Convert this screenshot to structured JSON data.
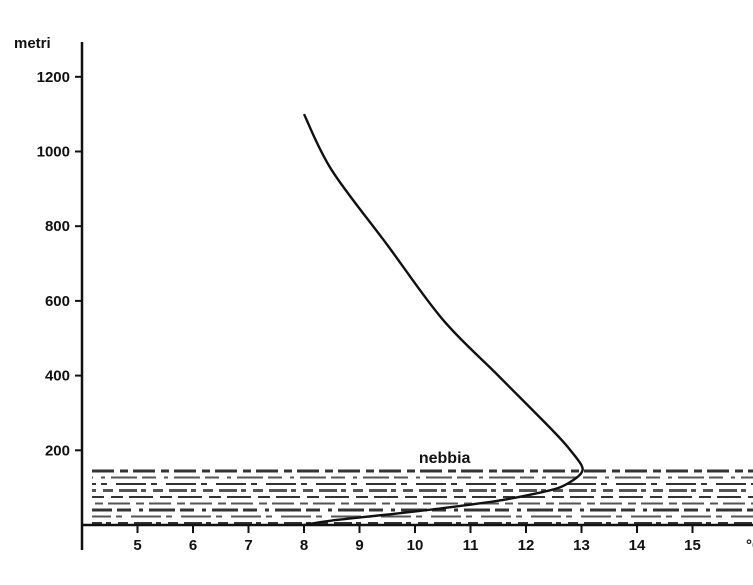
{
  "chart_data": {
    "type": "line",
    "ylabel": "metri",
    "xlabel": "°C",
    "xlim": [
      4,
      16
    ],
    "ylim": [
      0,
      1300
    ],
    "x_ticks": [
      "5",
      "6",
      "7",
      "8",
      "9",
      "10",
      "11",
      "12",
      "13",
      "14",
      "15"
    ],
    "y_ticks": [
      "200",
      "400",
      "600",
      "800",
      "1000",
      "1200"
    ],
    "y_tick_values": [
      200,
      400,
      600,
      800,
      1000,
      1200
    ],
    "x_tick_values": [
      5,
      6,
      7,
      8,
      9,
      10,
      11,
      12,
      13,
      14,
      15
    ],
    "series": [
      {
        "x": [
          8.0,
          8.5,
          9.5,
          10.5,
          11.5,
          12.2,
          12.6,
          12.85,
          13.0,
          13.0,
          12.8,
          12.5,
          11.5,
          10.5,
          9.5,
          8.5,
          8.0
        ],
        "y": [
          0,
          12,
          28,
          45,
          65,
          85,
          100,
          120,
          140,
          160,
          200,
          250,
          400,
          550,
          750,
          950,
          1100
        ]
      }
    ],
    "annotations": [
      {
        "text": "nebbia",
        "x": 10.7,
        "y": 180
      }
    ],
    "shaded_band": {
      "label_ref": "nebbia",
      "y_range": [
        0,
        150
      ]
    },
    "grid": false
  }
}
